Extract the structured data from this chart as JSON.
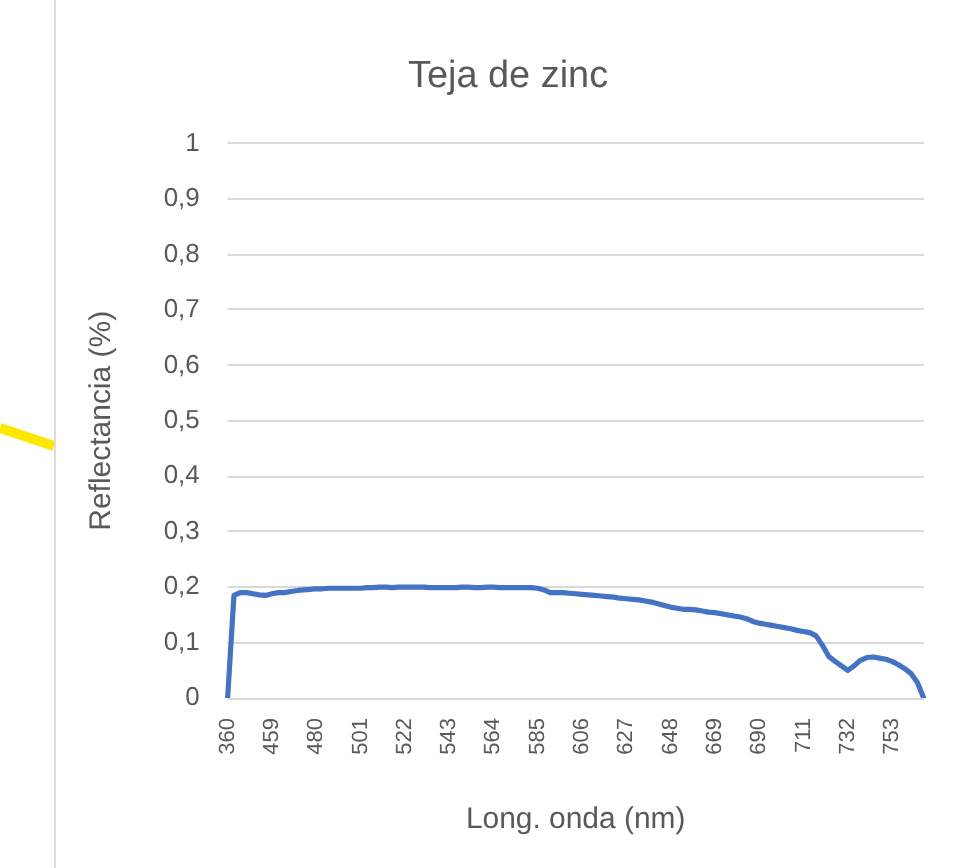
{
  "chart_data": {
    "type": "line",
    "title": "Teja de zinc",
    "xlabel": "Long. onda (nm)",
    "ylabel": "Reflectancia (%)",
    "categories": [
      "360",
      null,
      null,
      null,
      null,
      null,
      null,
      "459",
      null,
      null,
      null,
      null,
      null,
      null,
      "480",
      null,
      null,
      null,
      null,
      null,
      null,
      "501",
      null,
      null,
      null,
      null,
      null,
      null,
      "522",
      null,
      null,
      null,
      null,
      null,
      null,
      "543",
      null,
      null,
      null,
      null,
      null,
      null,
      "564",
      null,
      null,
      null,
      null,
      null,
      null,
      "585",
      null,
      null,
      null,
      null,
      null,
      null,
      "606",
      null,
      null,
      null,
      null,
      null,
      null,
      "627",
      null,
      null,
      null,
      null,
      null,
      null,
      "648",
      null,
      null,
      null,
      null,
      null,
      null,
      "669",
      null,
      null,
      null,
      null,
      null,
      null,
      "690",
      null,
      null,
      null,
      null,
      null,
      null,
      "711",
      null,
      null,
      null,
      null,
      null,
      null,
      "732",
      null,
      null,
      null,
      null,
      null,
      null,
      "753",
      null,
      null,
      null,
      null,
      null
    ],
    "values": [
      0,
      0.185,
      0.19,
      0.19,
      0.188,
      0.186,
      0.185,
      0.188,
      0.19,
      0.19,
      0.192,
      0.194,
      0.195,
      0.196,
      0.197,
      0.197,
      0.198,
      0.198,
      0.198,
      0.198,
      0.198,
      0.198,
      0.199,
      0.199,
      0.2,
      0.2,
      0.199,
      0.2,
      0.2,
      0.2,
      0.2,
      0.2,
      0.199,
      0.199,
      0.199,
      0.199,
      0.199,
      0.2,
      0.2,
      0.199,
      0.199,
      0.2,
      0.2,
      0.199,
      0.199,
      0.199,
      0.199,
      0.199,
      0.199,
      0.198,
      0.195,
      0.19,
      0.19,
      0.19,
      0.189,
      0.188,
      0.187,
      0.186,
      0.185,
      0.184,
      0.183,
      0.182,
      0.18,
      0.179,
      0.178,
      0.177,
      0.175,
      0.173,
      0.17,
      0.167,
      0.164,
      0.162,
      0.16,
      0.16,
      0.159,
      0.157,
      0.155,
      0.154,
      0.152,
      0.15,
      0.148,
      0.146,
      0.143,
      0.138,
      0.135,
      0.133,
      0.131,
      0.129,
      0.127,
      0.125,
      0.122,
      0.12,
      0.118,
      0.112,
      0.095,
      0.075,
      0.066,
      0.058,
      0.05,
      0.058,
      0.068,
      0.073,
      0.074,
      0.072,
      0.07,
      0.066,
      0.06,
      0.053,
      0.044,
      0.028,
      0
    ],
    "color": "#4472c4",
    "ylim": [
      0,
      1
    ],
    "yticks": [
      0,
      {
        "value": 0.1,
        "label": "0,1"
      },
      {
        "value": 0.2,
        "label": "0,2"
      },
      {
        "value": 0.3,
        "label": "0,3"
      },
      {
        "value": 0.4,
        "label": "0,4"
      },
      {
        "value": 0.5,
        "label": "0,5"
      },
      {
        "value": 0.6,
        "label": "0,6"
      },
      {
        "value": 0.7,
        "label": "0,7"
      },
      {
        "value": 0.8,
        "label": "0,8"
      },
      {
        "value": 0.9,
        "label": "0,9"
      },
      1
    ],
    "grid": "y",
    "marker": "none",
    "line_style": "solid"
  }
}
